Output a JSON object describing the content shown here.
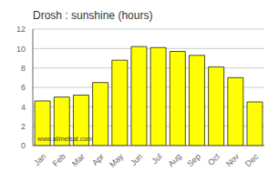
{
  "chart_data": {
    "type": "bar",
    "title": "Drosh : sunshine (hours)",
    "categories": [
      "Jan",
      "Feb",
      "Mar",
      "Apr",
      "May",
      "Jun",
      "Jul",
      "Aug",
      "Sep",
      "Oct",
      "Nov",
      "Dec"
    ],
    "values": [
      4.6,
      5.0,
      5.2,
      6.5,
      8.8,
      10.2,
      10.1,
      9.7,
      9.3,
      8.1,
      7.0,
      4.5
    ],
    "color": "#ffff00",
    "ylim": [
      0,
      12
    ],
    "yticks": [
      0,
      2,
      4,
      6,
      8,
      10,
      12
    ],
    "grid": true,
    "annotations": [
      "www.allmetsat.com"
    ]
  }
}
